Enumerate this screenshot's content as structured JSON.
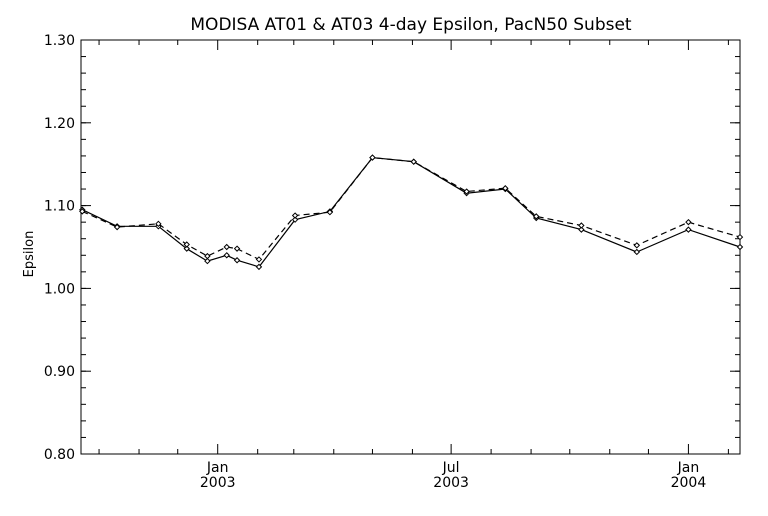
{
  "chart_data": {
    "type": "line",
    "title": "MODISA AT01 & AT03 4-day Epsilon, PacN50 Subset",
    "xlabel": "",
    "ylabel": "Epsilon",
    "ylim": [
      0.8,
      1.3
    ],
    "yticks": [
      "0.80",
      "0.90",
      "1.00",
      "1.10",
      "1.20",
      "1.30"
    ],
    "xlim": [
      "2002-09-17",
      "2004-02-10"
    ],
    "xticks": [
      {
        "date": "2003-01-01",
        "line1": "Jan",
        "line2": "2003"
      },
      {
        "date": "2003-07-01",
        "line1": "Jul",
        "line2": "2003"
      },
      {
        "date": "2004-01-01",
        "line1": "Jan",
        "line2": "2004"
      }
    ],
    "grid": false,
    "series": [
      {
        "style": "solid",
        "x": [
          "2002-09-18",
          "2002-10-15",
          "2002-11-16",
          "2002-12-08",
          "2002-12-24",
          "2003-01-08",
          "2003-01-16",
          "2003-02-02",
          "2003-03-02",
          "2003-03-29",
          "2003-05-01",
          "2003-06-02",
          "2003-07-13",
          "2003-08-12",
          "2003-09-05",
          "2003-10-10",
          "2003-11-22",
          "2004-01-01",
          "2004-02-10"
        ],
        "values": [
          1.095,
          1.075,
          1.075,
          1.048,
          1.033,
          1.04,
          1.034,
          1.026,
          1.083,
          1.093,
          1.158,
          1.153,
          1.115,
          1.12,
          1.085,
          1.071,
          1.044,
          1.071,
          1.05
        ]
      },
      {
        "style": "dashed",
        "x": [
          "2002-09-18",
          "2002-10-15",
          "2002-11-16",
          "2002-12-08",
          "2002-12-24",
          "2003-01-08",
          "2003-01-16",
          "2003-02-02",
          "2003-03-02",
          "2003-03-29",
          "2003-05-01",
          "2003-06-02",
          "2003-07-13",
          "2003-08-12",
          "2003-09-05",
          "2003-10-10",
          "2003-11-22",
          "2004-01-01",
          "2004-02-10"
        ],
        "values": [
          1.093,
          1.074,
          1.078,
          1.053,
          1.039,
          1.05,
          1.048,
          1.035,
          1.088,
          1.092,
          1.158,
          1.153,
          1.117,
          1.121,
          1.087,
          1.076,
          1.052,
          1.08,
          1.062
        ]
      }
    ]
  }
}
